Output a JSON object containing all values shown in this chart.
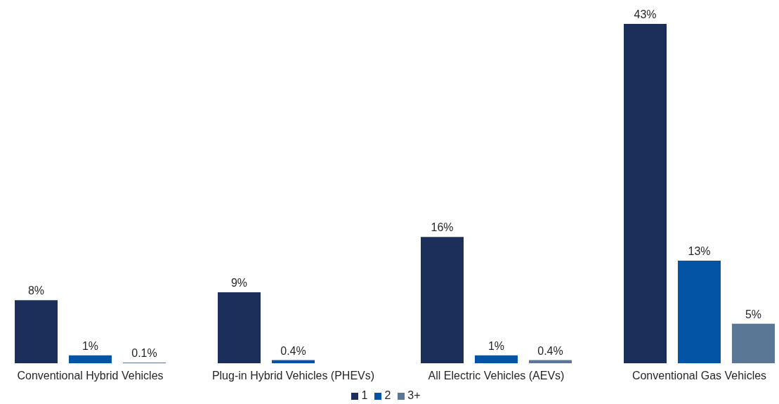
{
  "chart_data": {
    "type": "bar",
    "categories": [
      "Conventional Hybrid Vehicles",
      "Plug-in Hybrid Vehicles (PHEVs)",
      "All Electric Vehicles (AEVs)",
      "Conventional Gas Vehicles"
    ],
    "series": [
      {
        "name": "1",
        "color": "#1b2f5a",
        "values": [
          8,
          9,
          16,
          43
        ],
        "value_labels": [
          "8%",
          "9%",
          "16%",
          "43%"
        ]
      },
      {
        "name": "2",
        "color": "#0454a5",
        "values": [
          1,
          0.4,
          1,
          13
        ],
        "value_labels": [
          "1%",
          "0.4%",
          "1%",
          "13%"
        ]
      },
      {
        "name": "3+",
        "color": "#5a7895",
        "values": [
          0.1,
          null,
          0.4,
          5
        ],
        "value_labels": [
          "0.1%",
          null,
          "0.4%",
          "5%"
        ]
      }
    ],
    "legend": "bottom"
  }
}
